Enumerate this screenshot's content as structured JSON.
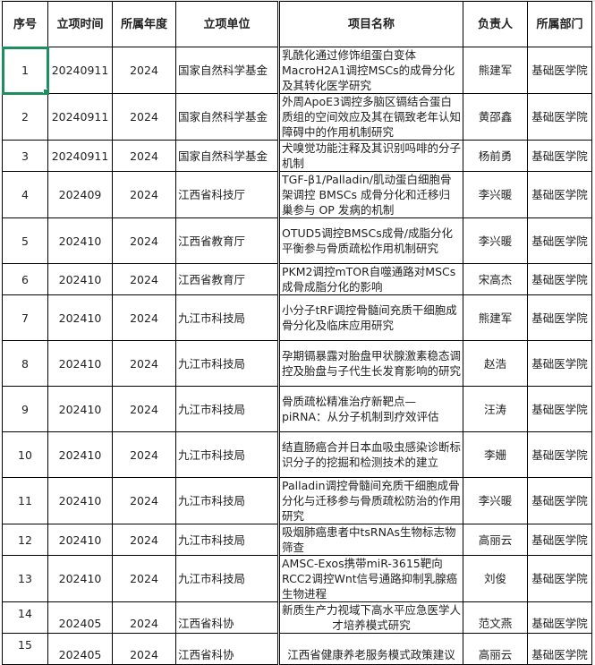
{
  "colors": {
    "selection": "#1e8e5e",
    "border": "#000000"
  },
  "headers": [
    "序号",
    "立项时间",
    "所属年度",
    "立项单位",
    "项目名称",
    "负责人",
    "所属部门"
  ],
  "rows": [
    {
      "no": "1",
      "date": "20240911",
      "year": "2024",
      "org": "国家自然科学基金",
      "name": "乳酰化通过修饰组蛋白变体MacroH2A1调控MSCs的成骨分化及其转化医学研究",
      "lead": "熊建军",
      "dept": "基础医学院"
    },
    {
      "no": "2",
      "date": "20240911",
      "year": "2024",
      "org": "国家自然科学基金",
      "name": "外周ApoE3调控多脑区镉结合蛋白质组的空间效应及其在镉致老年认知障碍中的作用机制研究",
      "lead": "黄邵鑫",
      "dept": "基础医学院"
    },
    {
      "no": "3",
      "date": "20240911",
      "year": "2024",
      "org": "国家自然科学基金",
      "name": "犬嗅觉功能注释及其识别吗啡的分子机制",
      "lead": "杨前勇",
      "dept": "基础医学院"
    },
    {
      "no": "4",
      "date": "202409",
      "year": "2024",
      "org": "江西省科技厅",
      "name": "TGF-β1/Palladin/肌动蛋白细胞骨架调控 BMSCs 成骨分化和迁移归巢参与 OP 发病的机制",
      "lead": "李兴暖",
      "dept": "基础医学院"
    },
    {
      "no": "5",
      "date": "202410",
      "year": "2024",
      "org": "江西省教育厅",
      "name": "OTUD5调控BMSCs成骨/成脂分化平衡参与骨质疏松作用机制研究",
      "lead": "李兴暖",
      "dept": "基础医学院"
    },
    {
      "no": "6",
      "date": "202410",
      "year": "2024",
      "org": "江西省教育厅",
      "name": "PKM2调控mTOR自噬通路对MSCs成骨成脂分化的影响",
      "lead": "宋高杰",
      "dept": "基础医学院"
    },
    {
      "no": "7",
      "date": "202410",
      "year": "2024",
      "org": "九江市科技局",
      "name": "小分子tRF调控骨髓间充质干细胞成骨分化及临床应用研究",
      "lead": "熊建军",
      "dept": "基础医学院"
    },
    {
      "no": "8",
      "date": "202410",
      "year": "2024",
      "org": "九江市科技局",
      "name": "孕期镉暴露对胎盘甲状腺激素稳态调控及胎盘与子代生长发育影响的研究",
      "lead": "赵浩",
      "dept": "基础医学院"
    },
    {
      "no": "9",
      "date": "202410",
      "year": "2024",
      "org": "九江市科技局",
      "name": "骨质疏松精准治疗新靶点—piRNA：从分子机制到疗效评估",
      "lead": "汪涛",
      "dept": "基础医学院"
    },
    {
      "no": "10",
      "date": "202410",
      "year": "2024",
      "org": "九江市科技局",
      "name": "结直肠癌合并日本血吸虫感染诊断标识分子的挖掘和检测技术的建立",
      "lead": "李姗",
      "dept": "基础医学院"
    },
    {
      "no": "11",
      "date": "202410",
      "year": "2024",
      "org": "九江市科技局",
      "name": "Palladin调控骨髓间充质干细胞成骨分化与迁移参与骨质疏松防治的作用研究",
      "lead": "李兴暖",
      "dept": "基础医学院"
    },
    {
      "no": "12",
      "date": "202410",
      "year": "2024",
      "org": "九江市科技局",
      "name": "吸烟肺癌患者中tsRNAs生物标志物筛查",
      "lead": "高丽云",
      "dept": "基础医学院"
    },
    {
      "no": "13",
      "date": "202410",
      "year": "2024",
      "org": "九江市科技局",
      "name": "AMSC-Exos携带miR-3615靶向RCC2调控Wnt信号通路抑制乳腺癌生物进程",
      "lead": "刘俊",
      "dept": "基础医学院"
    },
    {
      "no": "14",
      "date": "202405",
      "year": "2024",
      "org": "江西省科协",
      "name": "新质生产力视域下高水平应急医学人才培养模式研究",
      "lead": "范文燕",
      "dept": "基础医学院"
    },
    {
      "no": "15",
      "date": "202405",
      "year": "2024",
      "org": "江西省科协",
      "name": "江西省健康养老服务模式政策建议",
      "lead": "高丽云",
      "dept": "基础医学院"
    }
  ]
}
